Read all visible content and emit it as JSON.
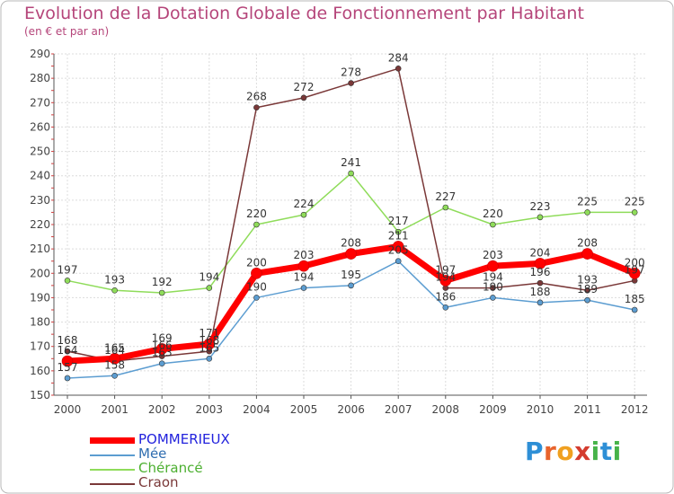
{
  "title": "Evolution de la Dotation Globale de Fonctionnement par Habitant",
  "subtitle": "(en € et par an)",
  "logo": {
    "text": "Proxiti",
    "letters": [
      "P",
      "r",
      "o",
      "x",
      "i",
      "t",
      "i"
    ],
    "colors": [
      "#2e8fd6",
      "#e8632b",
      "#f0a020",
      "#d43c2f",
      "#47b34a",
      "#2e8fd6",
      "#47b34a"
    ]
  },
  "chart_data": {
    "type": "line",
    "title": "Evolution de la Dotation Globale de Fonctionnement par Habitant",
    "ylabel": "(en € et par an)",
    "xlabel": "",
    "x": [
      "2000",
      "2001",
      "2002",
      "2003",
      "2004",
      "2005",
      "2006",
      "2007",
      "2008",
      "2009",
      "2010",
      "2011",
      "2012"
    ],
    "ylim": [
      150,
      290
    ],
    "yticks": [
      150,
      160,
      170,
      180,
      190,
      200,
      210,
      220,
      230,
      240,
      250,
      260,
      270,
      280,
      290
    ],
    "grid": true,
    "series": [
      {
        "name": "POMMERIEUX",
        "color": "#ff0000",
        "label_color": "#2222dd",
        "width": 7,
        "values": [
          164,
          165,
          169,
          171,
          200,
          203,
          208,
          211,
          197,
          203,
          204,
          208,
          200
        ]
      },
      {
        "name": "Mée",
        "color": "#5c9dd1",
        "label_color": "#2e6db0",
        "width": 1.5,
        "values": [
          157,
          158,
          163,
          165,
          190,
          194,
          195,
          205,
          186,
          190,
          188,
          189,
          185
        ]
      },
      {
        "name": "Chérancé",
        "color": "#8fdc5a",
        "label_color": "#4caf30",
        "width": 1.5,
        "values": [
          197,
          193,
          192,
          194,
          220,
          224,
          241,
          217,
          227,
          220,
          223,
          225,
          225
        ]
      },
      {
        "name": "Craon",
        "color": "#7a3838",
        "label_color": "#7a3838",
        "width": 1.5,
        "values": [
          168,
          164,
          166,
          168,
          268,
          272,
          278,
          284,
          194,
          194,
          196,
          193,
          197
        ]
      }
    ]
  }
}
